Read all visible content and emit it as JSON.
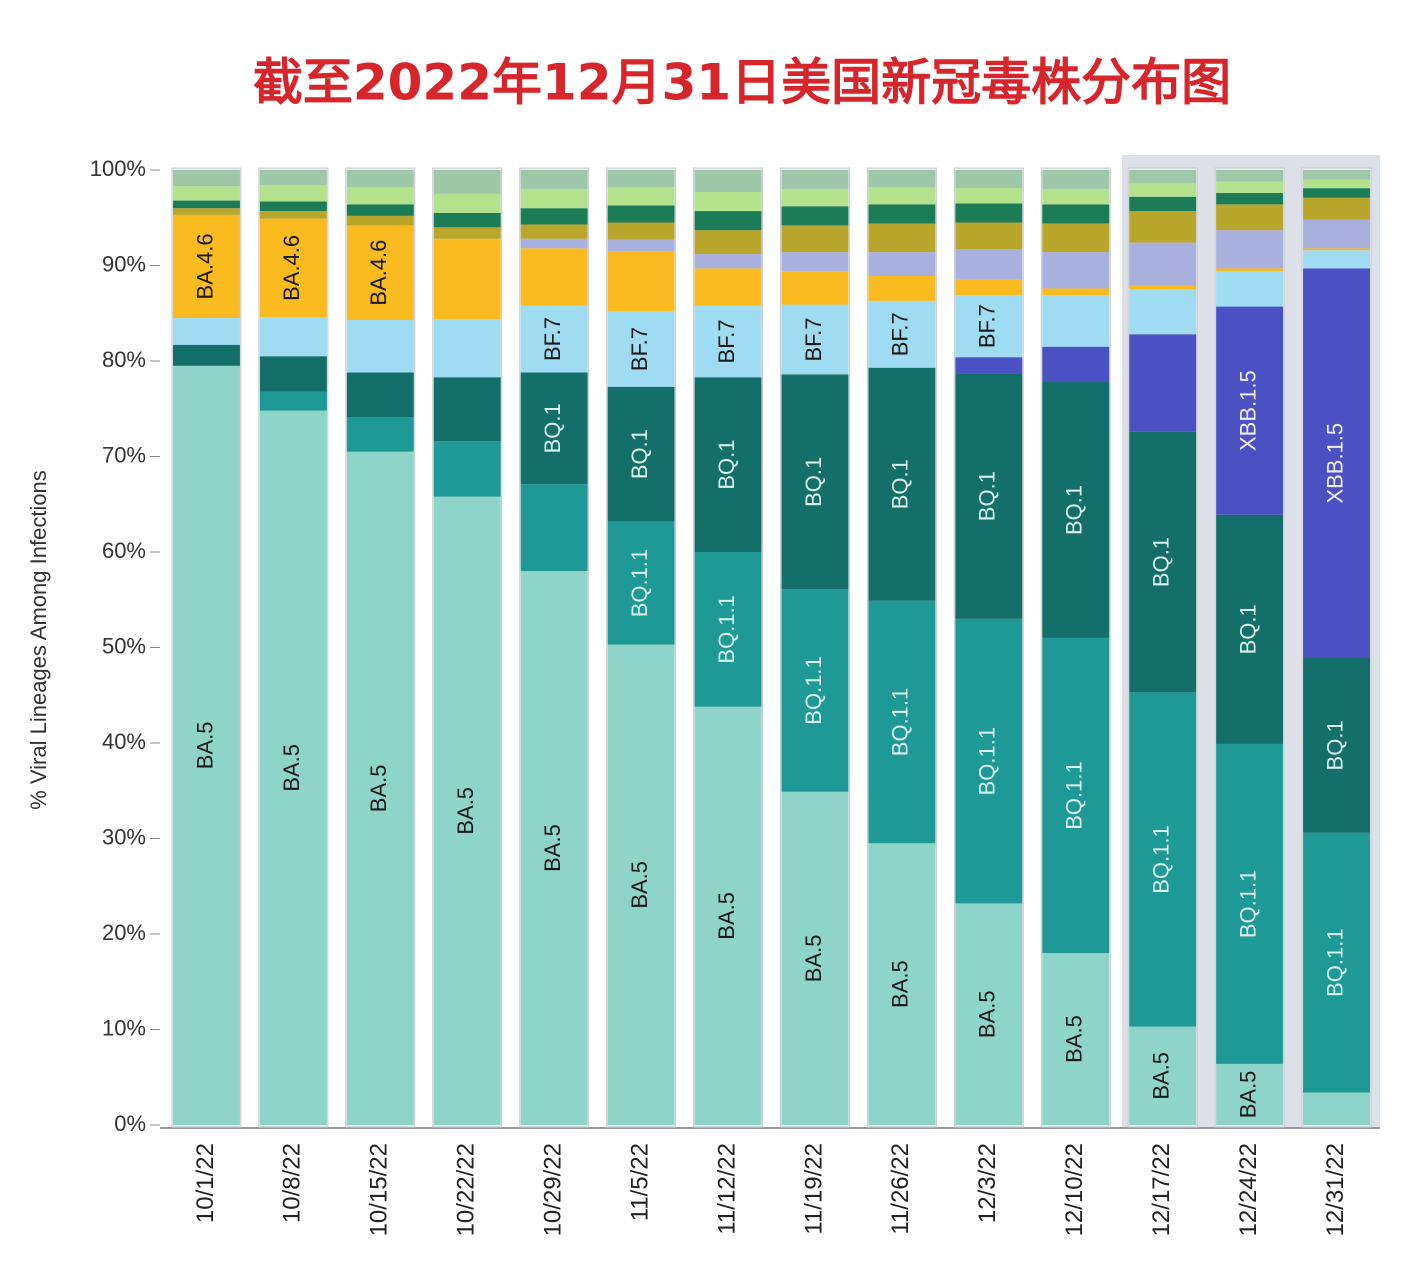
{
  "chart_data": {
    "type": "bar",
    "stacked": true,
    "title": "截至2022年12月31日美国新冠毒株分布图",
    "y_label": "% Viral Lineages Among Infections",
    "categories": [
      "10/1/22",
      "10/8/22",
      "10/15/22",
      "10/22/22",
      "10/29/22",
      "11/5/22",
      "11/12/22",
      "11/19/22",
      "11/26/22",
      "12/3/22",
      "12/10/22",
      "12/17/22",
      "12/24/22",
      "12/31/22"
    ],
    "ylim": [
      0,
      100
    ],
    "yticks": [
      {
        "value": 0,
        "label": "0%"
      },
      {
        "value": 10,
        "label": "10%"
      },
      {
        "value": 20,
        "label": "20%"
      },
      {
        "value": 30,
        "label": "30%"
      },
      {
        "value": 40,
        "label": "40%"
      },
      {
        "value": 50,
        "label": "50%"
      },
      {
        "value": 60,
        "label": "60%"
      },
      {
        "value": 70,
        "label": "70%"
      },
      {
        "value": 80,
        "label": "80%"
      },
      {
        "value": 90,
        "label": "90%"
      },
      {
        "value": 100,
        "label": "100%"
      }
    ],
    "series": [
      {
        "name": "BA.5",
        "color": "#8fd4c9",
        "label_color": "#1a1a1a",
        "values": [
          79.5,
          74.8,
          70.5,
          65.8,
          58.0,
          50.3,
          43.8,
          34.9,
          29.5,
          23.2,
          18.0,
          10.3,
          6.4,
          3.4
        ],
        "segment_labels": [
          "BA.5",
          "BA.5",
          "BA.5",
          "BA.5",
          "BA.5",
          "BA.5",
          "BA.5",
          "BA.5",
          "BA.5",
          "BA.5",
          "BA.5",
          "BA.5",
          "BA.5",
          null
        ]
      },
      {
        "name": "BQ.1.1",
        "color": "#1e9995",
        "label_color": "#d8f2f0",
        "values": [
          0,
          2.0,
          3.6,
          5.8,
          9.1,
          12.9,
          16.2,
          21.2,
          25.4,
          29.8,
          33.0,
          35.0,
          33.5,
          27.2
        ],
        "segment_labels": [
          null,
          null,
          null,
          null,
          null,
          "BQ.1.1",
          "BQ.1.1",
          "BQ.1.1",
          "BQ.1.1",
          "BQ.1.1",
          "BQ.1.1",
          "BQ.1.1",
          "BQ.1.1",
          "BQ.1.1"
        ]
      },
      {
        "name": "BQ.1",
        "color": "#146f6a",
        "label_color": "#d8f2f0",
        "values": [
          2.2,
          3.7,
          4.7,
          6.7,
          11.7,
          14.1,
          18.3,
          22.5,
          24.4,
          25.7,
          26.8,
          27.3,
          24.0,
          18.3
        ],
        "segment_labels": [
          null,
          null,
          null,
          null,
          "BQ.1",
          "BQ.1",
          "BQ.1",
          "BQ.1",
          "BQ.1",
          "BQ.1",
          "BQ.1",
          "BQ.1",
          "BQ.1",
          "BQ.1"
        ]
      },
      {
        "name": "XBB.1.5",
        "color": "#4b50c2",
        "label_color": "#eef0ff",
        "values": [
          0,
          0,
          0,
          0,
          0,
          0,
          0,
          0,
          0,
          1.7,
          3.7,
          10.2,
          21.8,
          40.8
        ],
        "segment_labels": [
          null,
          null,
          null,
          null,
          null,
          null,
          null,
          null,
          null,
          null,
          null,
          null,
          "XBB.1.5",
          "XBB.1.5"
        ]
      },
      {
        "name": "BF.7",
        "color": "#9fdcf2",
        "label_color": "#1a1a1a",
        "values": [
          2.8,
          4.1,
          5.5,
          6.1,
          7.0,
          7.9,
          7.5,
          7.3,
          7.0,
          6.5,
          5.4,
          4.7,
          3.7,
          1.9
        ],
        "segment_labels": [
          null,
          null,
          null,
          null,
          "BF.7",
          "BF.7",
          "BF.7",
          "BF.7",
          "BF.7",
          "BF.7",
          null,
          null,
          null,
          null
        ]
      },
      {
        "name": "BA.4.6",
        "color": "#f9bb1f",
        "label_color": "#1a1a1a",
        "values": [
          10.8,
          10.3,
          9.9,
          8.4,
          6.0,
          6.3,
          3.9,
          3.5,
          2.6,
          1.6,
          0.7,
          0.4,
          0.3,
          0.2
        ],
        "segment_labels": [
          "BA.4.6",
          "BA.4.6",
          "BA.4.6",
          null,
          null,
          null,
          null,
          null,
          null,
          null,
          null,
          null,
          null,
          null
        ]
      },
      {
        "color": "#a9b0dd",
        "values": [
          0,
          0,
          0,
          0,
          1.0,
          1.2,
          1.5,
          2.0,
          2.5,
          3.2,
          3.8,
          4.5,
          4.0,
          3.0
        ]
      },
      {
        "color": "#b9a62c",
        "values": [
          0.7,
          0.8,
          1.0,
          1.2,
          1.5,
          1.8,
          2.5,
          2.8,
          3.0,
          2.8,
          3.0,
          3.3,
          2.7,
          2.3
        ]
      },
      {
        "color": "#1c7c57",
        "values": [
          0.8,
          1.0,
          1.2,
          1.5,
          1.7,
          1.8,
          2.0,
          2.0,
          2.0,
          2.0,
          2.0,
          1.5,
          1.2,
          1.0
        ]
      },
      {
        "color": "#b3e18c",
        "values": [
          1.5,
          1.7,
          1.8,
          2.0,
          2.0,
          1.9,
          2.0,
          1.8,
          1.8,
          1.6,
          1.6,
          1.4,
          1.2,
          0.9
        ]
      },
      {
        "color": "#9fc8aa",
        "values": [
          1.7,
          1.6,
          1.8,
          2.5,
          2.0,
          1.8,
          2.3,
          2.0,
          1.8,
          1.9,
          2.0,
          1.4,
          1.2,
          1.0
        ]
      }
    ]
  }
}
